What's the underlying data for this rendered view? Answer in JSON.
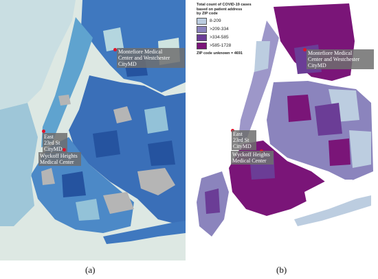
{
  "panels": {
    "a": {
      "caption": "(a)",
      "labels": {
        "montefiore": [
          "Montefiore Medical",
          "Center and Westchester",
          "CityMD"
        ],
        "east23": [
          "East",
          "23rd St",
          "CityMD"
        ],
        "wyckoff": [
          "Wyckoff Heights",
          "Medical Center"
        ]
      }
    },
    "b": {
      "caption": "(b)",
      "legend": {
        "title": [
          "Total count of COVID-19 cases",
          "based on patient address",
          "by ZIP code"
        ],
        "items": [
          {
            "label": "8-209",
            "color": "#bccde0"
          },
          {
            "label": ">209-334",
            "color": "#8b84bd"
          },
          {
            "label": ">334-585",
            "color": "#6b3d96"
          },
          {
            "label": ">585-1728",
            "color": "#7a1578"
          }
        ],
        "unknown": "ZIP code unknown = 4691"
      },
      "labels": {
        "montefiore": [
          "Montefiore Medical",
          "Center and Westchester",
          "CityMD"
        ],
        "east23": [
          "East",
          "23rd St",
          "CityMD"
        ],
        "wyckoff": [
          "Wyckoff Heights",
          "Medical Center"
        ]
      }
    }
  },
  "colors": {
    "map_a_light": "#a9cbd8",
    "map_a_mid": "#4b8fc6",
    "map_a_dark": "#2a5aa6",
    "map_a_gray": "#b8b8b8",
    "map_a_water": "#dde8e3",
    "marker": "#e0142a"
  }
}
